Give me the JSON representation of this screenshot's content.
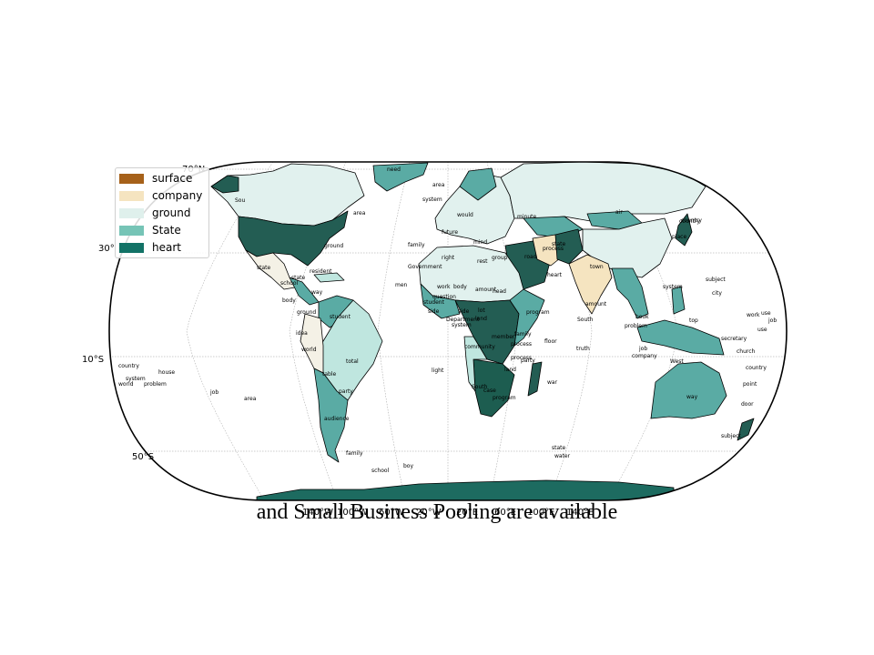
{
  "map": {
    "caption": "and Small Business Pooling are available",
    "lat_ticks": [
      {
        "label": "70°N"
      },
      {
        "label": "30°"
      },
      {
        "label": "10°S"
      },
      {
        "label": "50°S"
      }
    ],
    "lon_ticks": [
      "140°W",
      "100°W",
      "60°W",
      "20°W",
      "20°E",
      "60°E",
      "100°E",
      "140°E"
    ],
    "legend": [
      {
        "label": "surface",
        "color": "#a6611a"
      },
      {
        "label": "company",
        "color": "#f5e4c0"
      },
      {
        "label": "ground",
        "color": "#dff0ec"
      },
      {
        "label": "State",
        "color": "#76c4b6"
      },
      {
        "label": "heart",
        "color": "#127266"
      }
    ],
    "country_colors": {
      "light": "#e1f1ee",
      "pale": "#f4f1e6",
      "tan": "#f5e4c0",
      "mint": "#bfe6df",
      "teal": "#5aaba4",
      "dark": "#235d53",
      "verydark": "#1d5d50"
    },
    "region_labels": [
      "need",
      "area",
      "Sou",
      "area",
      "system",
      "would",
      "ground",
      "state",
      "resident",
      "state",
      "school",
      "way",
      "body",
      "ground",
      "idea",
      "student",
      "world",
      "total",
      "table",
      "party",
      "audience",
      "family",
      "school",
      "boy",
      "country",
      "system",
      "world",
      "problem",
      "house",
      "job",
      "area",
      "light",
      "family",
      "Government",
      "right",
      "rest",
      "group",
      "men",
      "work",
      "body",
      "amount",
      "head",
      "question",
      "Department",
      "system",
      "student",
      "side",
      "lot",
      "process",
      "floor",
      "truth",
      "South",
      "South",
      "case",
      "program",
      "war",
      "state",
      "water",
      "country",
      "company",
      "West",
      "way",
      "door",
      "subject",
      "secretary",
      "church",
      "country",
      "point",
      "subject",
      "city",
      "system",
      "top",
      "use",
      "work",
      "use",
      "job",
      "air",
      "country",
      "place",
      "town",
      "amount",
      "heart",
      "road",
      "problem",
      "future",
      "mind",
      "process",
      "family",
      "member",
      "minute",
      "process",
      "state",
      "program",
      "side",
      "community",
      "land",
      "land",
      "party",
      "book",
      "job"
    ]
  }
}
